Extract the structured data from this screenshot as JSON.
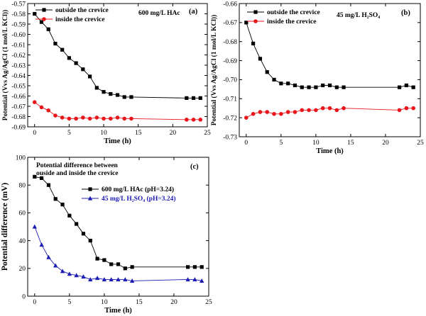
{
  "chart_data": [
    {
      "id": "a",
      "type": "line",
      "panel_label": "(a)",
      "annotation": "600 mg/L HAc",
      "xlabel": "Time (h)",
      "ylabel": "Potential (Vvs Ag/AgCl (1 mol/L KCl))",
      "xlim": [
        -1,
        25
      ],
      "ylim": [
        -0.69,
        -0.57
      ],
      "xticks": [
        "0",
        "5",
        "10",
        "15",
        "20",
        "25"
      ],
      "yticks": [
        "-0.57",
        "-0.58",
        "-0.59",
        "-0.60",
        "-0.61",
        "-0.62",
        "-0.63",
        "-0.64",
        "-0.65",
        "-0.66",
        "-0.67",
        "-0.68",
        "-0.69"
      ],
      "legend_position": "top-left",
      "series": [
        {
          "name": "outside the crevice",
          "marker": "square",
          "color": "#000000",
          "x": [
            0,
            1,
            2,
            3,
            4,
            5,
            6,
            7,
            8,
            9,
            10,
            11,
            12,
            13,
            14,
            22,
            23,
            24
          ],
          "y": [
            -0.58,
            -0.588,
            -0.595,
            -0.609,
            -0.615,
            -0.623,
            -0.628,
            -0.634,
            -0.641,
            -0.652,
            -0.656,
            -0.658,
            -0.659,
            -0.661,
            -0.661,
            -0.662,
            -0.662,
            -0.662
          ]
        },
        {
          "name": "inside the crevice",
          "marker": "circle",
          "color": "#e8161b",
          "x": [
            0,
            1,
            2,
            3,
            4,
            5,
            6,
            7,
            8,
            9,
            10,
            11,
            12,
            13,
            14,
            22,
            23,
            24
          ],
          "y": [
            -0.666,
            -0.671,
            -0.674,
            -0.679,
            -0.681,
            -0.682,
            -0.682,
            -0.681,
            -0.682,
            -0.681,
            -0.682,
            -0.682,
            -0.681,
            -0.682,
            -0.682,
            -0.683,
            -0.683,
            -0.683
          ]
        }
      ]
    },
    {
      "id": "b",
      "type": "line",
      "panel_label": "(b)",
      "annotation": "45 mg/L H₂SO₄",
      "xlabel": "Time (h)",
      "ylabel": "Potential (Vvs Ag/AgCl (1 mol/L KCl))",
      "xlim": [
        -1,
        25
      ],
      "ylim": [
        -0.73,
        -0.66
      ],
      "xticks": [
        "0",
        "5",
        "10",
        "15",
        "20",
        "25"
      ],
      "yticks": [
        "-0.66",
        "-0.67",
        "-0.68",
        "-0.69",
        "-0.70",
        "-0.71",
        "-0.72",
        "-0.73"
      ],
      "legend_position": "top-left",
      "series": [
        {
          "name": "outside the crevice",
          "marker": "square",
          "color": "#000000",
          "x": [
            0,
            1,
            2,
            3,
            4,
            5,
            6,
            7,
            8,
            9,
            10,
            11,
            12,
            13,
            14,
            22,
            23,
            24
          ],
          "y": [
            -0.67,
            -0.681,
            -0.689,
            -0.696,
            -0.7,
            -0.702,
            -0.702,
            -0.703,
            -0.704,
            -0.704,
            -0.704,
            -0.703,
            -0.703,
            -0.704,
            -0.704,
            -0.704,
            -0.703,
            -0.704
          ]
        },
        {
          "name": "inside the crevice",
          "marker": "circle",
          "color": "#e8161b",
          "x": [
            0,
            1,
            2,
            3,
            4,
            5,
            6,
            7,
            8,
            9,
            10,
            11,
            12,
            13,
            14,
            22,
            23,
            24
          ],
          "y": [
            -0.72,
            -0.718,
            -0.717,
            -0.717,
            -0.718,
            -0.718,
            -0.717,
            -0.717,
            -0.716,
            -0.716,
            -0.716,
            -0.715,
            -0.715,
            -0.716,
            -0.715,
            -0.716,
            -0.715,
            -0.715
          ]
        }
      ]
    },
    {
      "id": "c",
      "type": "line",
      "panel_label": "(c)",
      "annotation_lines": [
        "Potential difference between",
        "ouside and inside the crevice"
      ],
      "xlabel": "Time (h)",
      "ylabel": "Potential difference (mV)",
      "xlim": [
        -1,
        25
      ],
      "ylim": [
        0,
        100
      ],
      "xticks": [
        "0",
        "5",
        "10",
        "15",
        "20",
        "25"
      ],
      "yticks": [
        "0",
        "20",
        "40",
        "60",
        "80",
        "100"
      ],
      "legend_position": "top-center",
      "series": [
        {
          "name": "600 mg/L HAc (pH=3.24)",
          "marker": "square",
          "color": "#000000",
          "x": [
            0,
            1,
            2,
            3,
            4,
            5,
            6,
            7,
            8,
            9,
            10,
            11,
            12,
            13,
            14,
            22,
            23,
            24
          ],
          "y": [
            86,
            85,
            80,
            70,
            66,
            58,
            52,
            45,
            40,
            27,
            26,
            23,
            23,
            20,
            21,
            21,
            21,
            21
          ]
        },
        {
          "name": "45 mg/L H₂SO₄ (pH=3.24)",
          "marker": "triangle",
          "color": "#1c1cb4",
          "x": [
            0,
            1,
            2,
            3,
            4,
            5,
            6,
            7,
            8,
            9,
            10,
            11,
            12,
            13,
            14,
            22,
            23,
            24
          ],
          "y": [
            50,
            37,
            28,
            22,
            18,
            16,
            15,
            14,
            12,
            13,
            12,
            12,
            12,
            12,
            11,
            12,
            12,
            11
          ]
        }
      ]
    }
  ]
}
